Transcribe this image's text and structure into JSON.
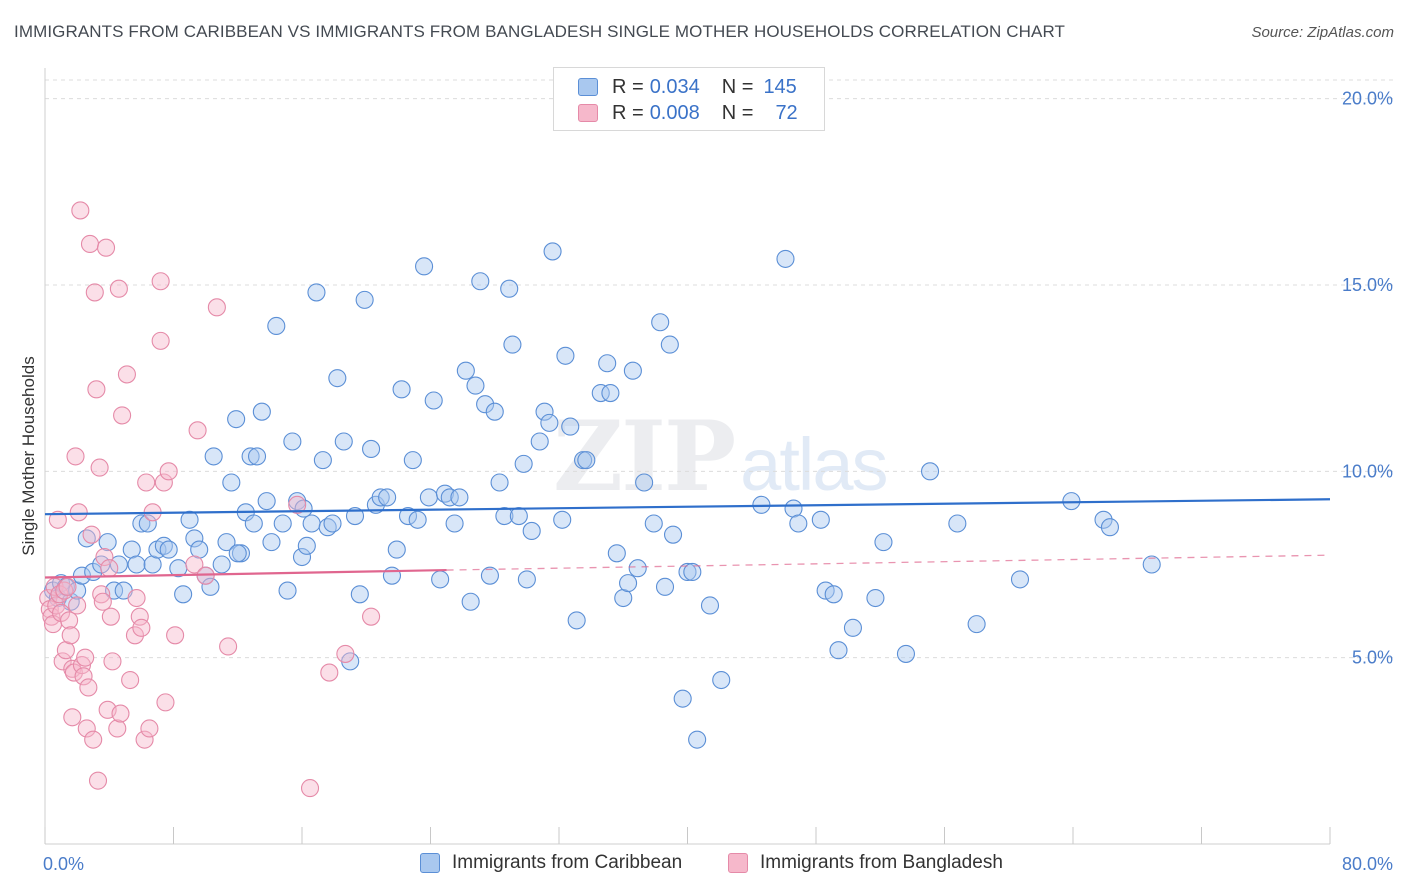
{
  "header": {
    "title": "IMMIGRANTS FROM CARIBBEAN VS IMMIGRANTS FROM BANGLADESH SINGLE MOTHER HOUSEHOLDS CORRELATION CHART",
    "source": "Source: ZipAtlas.com"
  },
  "watermark": {
    "zip": "ZIP",
    "atlas": "atlas"
  },
  "legend": {
    "r_label": "R =",
    "n_label": "N =",
    "rows": [
      {
        "r": "0.034",
        "n": "145"
      },
      {
        "r": "0.008",
        "n": "72"
      }
    ]
  },
  "colors": {
    "caribbean_fill": "#a9c8ef",
    "caribbean_stroke": "#5b8fd6",
    "caribbean_line": "#2f6fcb",
    "bangladesh_fill": "#f6b8cb",
    "bangladesh_stroke": "#e58aa8",
    "bangladesh_line": "#e0668f",
    "tick_label": "#4a7cc9",
    "grid": "#dcdcdc"
  },
  "chart_data": {
    "type": "scatter",
    "title": "IMMIGRANTS FROM CARIBBEAN VS IMMIGRANTS FROM BANGLADESH SINGLE MOTHER HOUSEHOLDS CORRELATION CHART",
    "xlabel": "",
    "ylabel": "Single Mother Households",
    "xlim": [
      0,
      80
    ],
    "ylim": [
      0,
      20.5
    ],
    "x_tick_labels": [
      "0.0%",
      "80.0%"
    ],
    "y_ticks": [
      5,
      10,
      15,
      20
    ],
    "y_tick_labels": [
      "5.0%",
      "10.0%",
      "15.0%",
      "20.0%"
    ],
    "grid": true,
    "legend_position": "top-center",
    "series": [
      {
        "name": "Immigrants from Caribbean",
        "r": 0.034,
        "n": 145,
        "trend": {
          "x": [
            0,
            80
          ],
          "y": [
            8.85,
            9.25
          ],
          "style": "solid"
        },
        "points": [
          [
            0.5,
            6.8
          ],
          [
            0.8,
            6.6
          ],
          [
            1.0,
            7.0
          ],
          [
            1.3,
            6.9
          ],
          [
            1.6,
            6.5
          ],
          [
            2.0,
            6.8
          ],
          [
            2.3,
            7.2
          ],
          [
            2.6,
            8.2
          ],
          [
            3.0,
            7.3
          ],
          [
            3.5,
            7.5
          ],
          [
            3.9,
            8.1
          ],
          [
            4.3,
            6.8
          ],
          [
            4.6,
            7.5
          ],
          [
            4.9,
            6.8
          ],
          [
            5.4,
            7.9
          ],
          [
            5.7,
            7.5
          ],
          [
            6.0,
            8.6
          ],
          [
            6.4,
            8.6
          ],
          [
            6.7,
            7.5
          ],
          [
            7.0,
            7.9
          ],
          [
            7.4,
            8.0
          ],
          [
            7.7,
            7.9
          ],
          [
            8.3,
            7.4
          ],
          [
            8.6,
            6.7
          ],
          [
            9.0,
            8.7
          ],
          [
            9.3,
            8.2
          ],
          [
            9.6,
            7.9
          ],
          [
            10.0,
            7.2
          ],
          [
            10.3,
            6.9
          ],
          [
            10.5,
            10.4
          ],
          [
            11.0,
            7.5
          ],
          [
            11.3,
            8.1
          ],
          [
            11.6,
            9.7
          ],
          [
            11.9,
            11.4
          ],
          [
            12.2,
            7.8
          ],
          [
            12.5,
            8.9
          ],
          [
            12.8,
            10.4
          ],
          [
            13.2,
            10.4
          ],
          [
            13.5,
            11.6
          ],
          [
            13.8,
            9.2
          ],
          [
            14.1,
            8.1
          ],
          [
            14.4,
            13.9
          ],
          [
            14.8,
            8.6
          ],
          [
            15.1,
            6.8
          ],
          [
            15.4,
            10.8
          ],
          [
            15.7,
            9.2
          ],
          [
            16.0,
            7.7
          ],
          [
            16.3,
            8.0
          ],
          [
            16.6,
            8.6
          ],
          [
            16.9,
            14.8
          ],
          [
            17.3,
            10.3
          ],
          [
            17.6,
            8.5
          ],
          [
            17.9,
            8.6
          ],
          [
            18.2,
            12.5
          ],
          [
            18.6,
            10.8
          ],
          [
            19.0,
            4.9
          ],
          [
            19.3,
            8.8
          ],
          [
            19.6,
            6.7
          ],
          [
            19.9,
            14.6
          ],
          [
            20.3,
            10.6
          ],
          [
            20.6,
            9.1
          ],
          [
            20.9,
            9.3
          ],
          [
            21.3,
            9.3
          ],
          [
            21.6,
            7.2
          ],
          [
            21.9,
            7.9
          ],
          [
            22.2,
            12.2
          ],
          [
            22.6,
            8.8
          ],
          [
            22.9,
            10.3
          ],
          [
            23.2,
            8.7
          ],
          [
            23.6,
            15.5
          ],
          [
            23.9,
            9.3
          ],
          [
            24.2,
            11.9
          ],
          [
            24.6,
            7.1
          ],
          [
            24.9,
            9.4
          ],
          [
            25.2,
            9.3
          ],
          [
            25.5,
            8.6
          ],
          [
            25.8,
            9.3
          ],
          [
            26.2,
            12.7
          ],
          [
            26.5,
            6.5
          ],
          [
            26.8,
            12.3
          ],
          [
            27.1,
            15.1
          ],
          [
            27.4,
            11.8
          ],
          [
            27.7,
            7.2
          ],
          [
            28.0,
            11.6
          ],
          [
            28.3,
            9.7
          ],
          [
            28.6,
            8.8
          ],
          [
            28.9,
            14.9
          ],
          [
            29.1,
            13.4
          ],
          [
            29.5,
            8.8
          ],
          [
            29.8,
            10.2
          ],
          [
            30.0,
            7.1
          ],
          [
            30.3,
            8.4
          ],
          [
            30.8,
            10.8
          ],
          [
            31.1,
            11.6
          ],
          [
            31.4,
            11.3
          ],
          [
            31.6,
            15.9
          ],
          [
            32.2,
            8.7
          ],
          [
            32.4,
            13.1
          ],
          [
            32.7,
            11.2
          ],
          [
            33.1,
            6.0
          ],
          [
            33.5,
            10.3
          ],
          [
            33.7,
            10.3
          ],
          [
            34.6,
            12.1
          ],
          [
            35.0,
            12.9
          ],
          [
            35.2,
            12.1
          ],
          [
            35.6,
            7.8
          ],
          [
            36.0,
            6.6
          ],
          [
            36.3,
            7.0
          ],
          [
            36.6,
            12.7
          ],
          [
            36.9,
            7.4
          ],
          [
            37.3,
            9.7
          ],
          [
            37.9,
            8.6
          ],
          [
            38.3,
            14.0
          ],
          [
            38.6,
            6.9
          ],
          [
            38.9,
            13.4
          ],
          [
            39.1,
            8.3
          ],
          [
            39.7,
            3.9
          ],
          [
            40.0,
            7.3
          ],
          [
            40.3,
            7.3
          ],
          [
            41.4,
            6.4
          ],
          [
            42.1,
            4.4
          ],
          [
            44.6,
            9.1
          ],
          [
            46.1,
            15.7
          ],
          [
            46.6,
            9.0
          ],
          [
            46.9,
            8.6
          ],
          [
            48.3,
            8.7
          ],
          [
            48.6,
            6.8
          ],
          [
            49.1,
            6.7
          ],
          [
            49.4,
            5.2
          ],
          [
            50.3,
            5.8
          ],
          [
            51.7,
            6.6
          ],
          [
            52.2,
            8.1
          ],
          [
            53.6,
            5.1
          ],
          [
            55.1,
            10.0
          ],
          [
            56.8,
            8.6
          ],
          [
            58.0,
            5.9
          ],
          [
            60.7,
            7.1
          ],
          [
            63.9,
            9.2
          ],
          [
            65.9,
            8.7
          ],
          [
            66.3,
            8.5
          ],
          [
            68.9,
            7.5
          ],
          [
            40.6,
            2.8
          ],
          [
            12.0,
            7.8
          ],
          [
            16.1,
            9.0
          ],
          [
            13.0,
            8.6
          ]
        ]
      },
      {
        "name": "Immigrants from Bangladesh",
        "r": 0.008,
        "n": 72,
        "trend": {
          "x": [
            0,
            25
          ],
          "y": [
            7.15,
            7.35
          ],
          "style": "solid",
          "extension": {
            "x": [
              25,
              80
            ],
            "y": [
              7.35,
              7.75
            ],
            "style": "dashed"
          }
        },
        "points": [
          [
            0.2,
            6.6
          ],
          [
            0.3,
            6.3
          ],
          [
            0.4,
            6.1
          ],
          [
            0.5,
            5.9
          ],
          [
            0.6,
            6.9
          ],
          [
            0.7,
            6.4
          ],
          [
            0.8,
            8.7
          ],
          [
            0.9,
            6.7
          ],
          [
            1.0,
            6.2
          ],
          [
            1.1,
            4.9
          ],
          [
            1.2,
            6.8
          ],
          [
            1.3,
            5.2
          ],
          [
            1.4,
            6.9
          ],
          [
            1.5,
            6.0
          ],
          [
            1.6,
            5.6
          ],
          [
            1.7,
            4.7
          ],
          [
            1.7,
            3.4
          ],
          [
            1.8,
            4.6
          ],
          [
            1.9,
            10.4
          ],
          [
            2.0,
            6.4
          ],
          [
            2.1,
            8.9
          ],
          [
            2.2,
            17.0
          ],
          [
            2.3,
            4.8
          ],
          [
            2.4,
            4.5
          ],
          [
            2.5,
            5.0
          ],
          [
            2.6,
            3.1
          ],
          [
            2.7,
            4.2
          ],
          [
            2.8,
            16.1
          ],
          [
            2.9,
            8.3
          ],
          [
            3.0,
            2.8
          ],
          [
            3.1,
            14.8
          ],
          [
            3.2,
            12.2
          ],
          [
            3.3,
            1.7
          ],
          [
            3.4,
            10.1
          ],
          [
            3.5,
            6.7
          ],
          [
            3.6,
            6.5
          ],
          [
            3.7,
            7.7
          ],
          [
            3.8,
            16.0
          ],
          [
            3.9,
            3.6
          ],
          [
            4.0,
            7.4
          ],
          [
            4.1,
            6.1
          ],
          [
            4.2,
            4.9
          ],
          [
            4.5,
            3.1
          ],
          [
            4.6,
            14.9
          ],
          [
            4.7,
            3.5
          ],
          [
            4.8,
            11.5
          ],
          [
            5.1,
            12.6
          ],
          [
            5.3,
            4.4
          ],
          [
            5.6,
            5.6
          ],
          [
            5.7,
            6.6
          ],
          [
            5.9,
            6.1
          ],
          [
            6.0,
            5.8
          ],
          [
            6.2,
            2.8
          ],
          [
            6.3,
            9.7
          ],
          [
            6.5,
            3.1
          ],
          [
            6.7,
            8.9
          ],
          [
            7.2,
            13.5
          ],
          [
            7.2,
            15.1
          ],
          [
            7.4,
            9.7
          ],
          [
            7.5,
            3.8
          ],
          [
            7.7,
            10.0
          ],
          [
            8.1,
            5.6
          ],
          [
            9.3,
            7.5
          ],
          [
            9.5,
            11.1
          ],
          [
            10.0,
            7.2
          ],
          [
            10.7,
            14.4
          ],
          [
            11.4,
            5.3
          ],
          [
            15.7,
            9.1
          ],
          [
            16.5,
            1.5
          ],
          [
            17.7,
            4.6
          ],
          [
            18.7,
            5.1
          ],
          [
            20.3,
            6.1
          ]
        ]
      }
    ]
  },
  "bottom_legend": {
    "caribbean": "Immigrants from Caribbean",
    "bangladesh": "Immigrants from Bangladesh"
  }
}
